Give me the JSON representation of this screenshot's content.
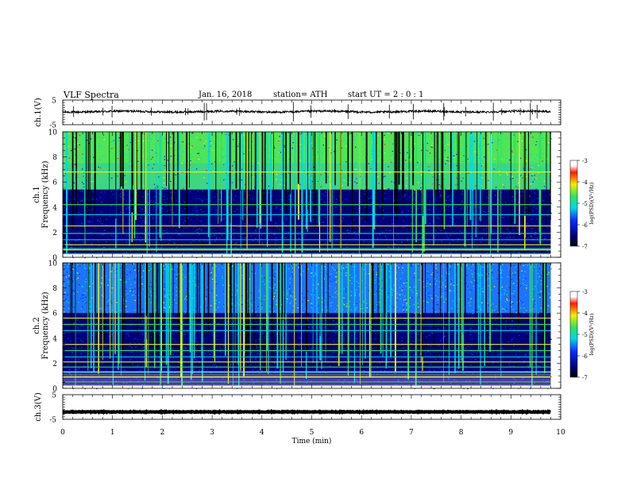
{
  "header": {
    "title": "VLF  Spectra",
    "date": "Jan. 16, 2018",
    "station": "station= ATH",
    "start": "start  UT  =   2  : 0   : 1"
  },
  "chart_data": [
    {
      "type": "line",
      "panel": "ch1-waveform",
      "ylabel": "ch.1(V)",
      "ylim": [
        -5,
        5
      ],
      "ytick_labels": [
        "5",
        "-5"
      ],
      "x_range_min": [
        0,
        9.8
      ],
      "baseline_v": 0.3,
      "color": "#000000"
    },
    {
      "type": "heatmap",
      "panel": "ch1-spectrogram",
      "ylabel": "ch.1\nFrequency (kHz)",
      "ylim": [
        0,
        10
      ],
      "yticks": [
        0,
        2,
        4,
        6,
        8,
        10
      ],
      "x_range_min": [
        0,
        9.8
      ],
      "strong_lines_khz": [
        0.3,
        0.7,
        1.0,
        1.4,
        1.9,
        2.5,
        3.4,
        4.2,
        6.8
      ],
      "colorbar": {
        "label": "log(PSD)(V²/Hz)",
        "ticks": [
          -7,
          -6,
          -5,
          -4,
          -3
        ]
      }
    },
    {
      "type": "heatmap",
      "panel": "ch2-spectrogram",
      "ylabel": "ch.2\nFrequency (kHz)",
      "ylim": [
        0,
        10
      ],
      "yticks": [
        0,
        2,
        4,
        6,
        8,
        10
      ],
      "x_range_min": [
        0,
        9.8
      ],
      "strong_lines_khz": [
        0.2,
        0.5,
        0.9,
        1.3,
        1.7,
        2.1,
        2.5,
        3.0,
        3.5,
        4.6,
        5.1,
        5.6
      ],
      "colorbar": {
        "label": "log(PSD)(V²/Hz)",
        "ticks": [
          -7,
          -6,
          -5,
          -4,
          -3
        ]
      }
    },
    {
      "type": "line",
      "panel": "ch3-waveform",
      "ylabel": "ch.3(V)",
      "ylim": [
        -5,
        5
      ],
      "ytick_labels": [
        "5",
        "-5"
      ],
      "x_range_min": [
        0,
        9.8
      ],
      "baseline_v": -2.0,
      "color": "#000000"
    }
  ],
  "xaxis": {
    "label": "Time  (min)",
    "ticks": [
      0,
      1,
      2,
      3,
      4,
      5,
      6,
      7,
      8,
      9,
      10
    ],
    "range": [
      0,
      10
    ]
  },
  "colors": {
    "black": "#000000",
    "deep_blue": "#00007a",
    "blue": "#0a2aff",
    "cyan": "#00d8e8",
    "green": "#30e060",
    "yellow": "#f0f000",
    "red": "#ff1a00"
  }
}
